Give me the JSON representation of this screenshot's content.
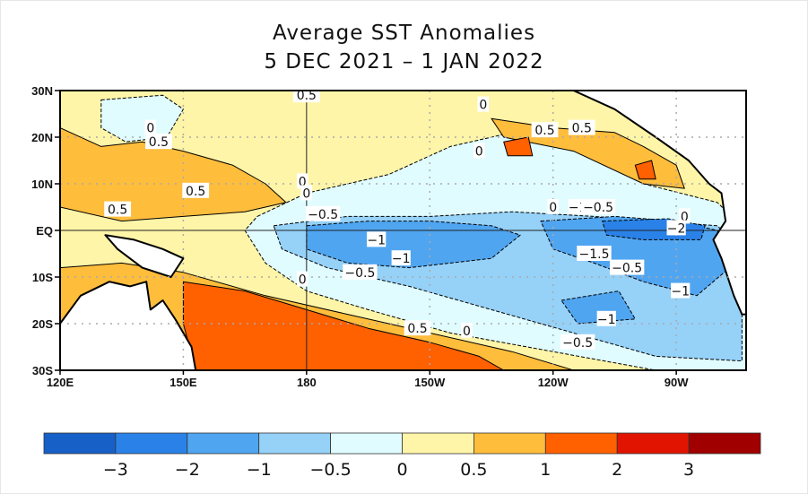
{
  "chart_data": {
    "type": "heatmap",
    "title": "Average SST Anomalies",
    "subtitle": "5 DEC 2021 – 1 JAN 2022",
    "xlabel": "",
    "ylabel": "",
    "xlim_deg_east": [
      120,
      287
    ],
    "ylim_deg_north": [
      -30,
      30
    ],
    "grid": true,
    "x_ticks": [
      {
        "value": 120,
        "label": "120E"
      },
      {
        "value": 150,
        "label": "150E"
      },
      {
        "value": 180,
        "label": "180"
      },
      {
        "value": 210,
        "label": "150W"
      },
      {
        "value": 240,
        "label": "120W"
      },
      {
        "value": 270,
        "label": "90W"
      }
    ],
    "y_ticks": [
      {
        "value": 30,
        "label": "30N"
      },
      {
        "value": 20,
        "label": "20N"
      },
      {
        "value": 10,
        "label": "10N"
      },
      {
        "value": 0,
        "label": "EQ"
      },
      {
        "value": -10,
        "label": "10S"
      },
      {
        "value": -20,
        "label": "20S"
      },
      {
        "value": -30,
        "label": "30S"
      }
    ],
    "colorbar": {
      "placement": "bottom",
      "bins": [
        {
          "range": "< -3",
          "color": "#1660c8"
        },
        {
          "range": "-3 to -2",
          "color": "#2a82e8"
        },
        {
          "range": "-2 to -1",
          "color": "#50a5f0"
        },
        {
          "range": "-1 to -0.5",
          "color": "#96d1f8"
        },
        {
          "range": "-0.5 to 0",
          "color": "#e0fcff"
        },
        {
          "range": "0 to 0.5",
          "color": "#fff5a8"
        },
        {
          "range": "0.5 to 1",
          "color": "#ffbd3c"
        },
        {
          "range": "1 to 2",
          "color": "#ff6000"
        },
        {
          "range": "2 to 3",
          "color": "#e01400"
        },
        {
          "range": "> 3",
          "color": "#a00000"
        }
      ],
      "tick_labels": [
        "−3",
        "−2",
        "−1",
        "−0.5",
        "0",
        "0.5",
        "1",
        "2",
        "3"
      ]
    },
    "regions": [
      {
        "level": "0 to 0.5",
        "note": "background warm-neutral band north and south",
        "poly": [
          [
            120,
            30
          ],
          [
            287,
            30
          ],
          [
            287,
            -30
          ],
          [
            120,
            -30
          ]
        ]
      },
      {
        "level": "-0.5 to 0",
        "note": "broad cool tongue central/eastern Pacific",
        "poly": [
          [
            168,
            3
          ],
          [
            180,
            8
          ],
          [
            200,
            12
          ],
          [
            215,
            18
          ],
          [
            235,
            22
          ],
          [
            250,
            16
          ],
          [
            262,
            10
          ],
          [
            280,
            6
          ],
          [
            287,
            0
          ],
          [
            287,
            -30
          ],
          [
            265,
            -30
          ],
          [
            240,
            -26
          ],
          [
            215,
            -22
          ],
          [
            195,
            -17
          ],
          [
            180,
            -13
          ],
          [
            170,
            -7
          ],
          [
            165,
            0
          ]
        ]
      },
      {
        "level": "-0.5 to 0",
        "note": "cool patch NW Pacific",
        "poly": [
          [
            130,
            28
          ],
          [
            145,
            29
          ],
          [
            150,
            26
          ],
          [
            146,
            20
          ],
          [
            136,
            19
          ],
          [
            130,
            22
          ]
        ]
      },
      {
        "level": "-1 to -0.5",
        "note": "La Nina moderate band",
        "poly": [
          [
            172,
            1
          ],
          [
            190,
            3
          ],
          [
            210,
            3
          ],
          [
            230,
            4
          ],
          [
            250,
            3
          ],
          [
            265,
            2
          ],
          [
            280,
            1
          ],
          [
            286,
            -4
          ],
          [
            286,
            -28
          ],
          [
            265,
            -27
          ],
          [
            245,
            -22
          ],
          [
            225,
            -17
          ],
          [
            205,
            -12
          ],
          [
            185,
            -8
          ],
          [
            174,
            -4
          ]
        ]
      },
      {
        "level": "-2 to -1",
        "note": "central equatorial cold core",
        "poly": [
          [
            180,
            1
          ],
          [
            195,
            2
          ],
          [
            210,
            2
          ],
          [
            225,
            1
          ],
          [
            232,
            -1
          ],
          [
            225,
            -6
          ],
          [
            205,
            -8
          ],
          [
            190,
            -7
          ],
          [
            180,
            -4
          ]
        ]
      },
      {
        "level": "-2 to -1",
        "note": "eastern equatorial cold core",
        "poly": [
          [
            237,
            2
          ],
          [
            255,
            3
          ],
          [
            270,
            2
          ],
          [
            280,
            0
          ],
          [
            283,
            -8
          ],
          [
            275,
            -14
          ],
          [
            262,
            -11
          ],
          [
            250,
            -7
          ],
          [
            240,
            -4
          ]
        ]
      },
      {
        "level": "-2 to -1",
        "note": "south-central cool patch",
        "poly": [
          [
            242,
            -15
          ],
          [
            256,
            -13
          ],
          [
            260,
            -19
          ],
          [
            246,
            -20
          ]
        ]
      },
      {
        "level": "-3 to -2",
        "note": "cold tongue near 95W",
        "poly": [
          [
            252,
            2
          ],
          [
            268,
            2.5
          ],
          [
            277,
            1
          ],
          [
            276,
            -2
          ],
          [
            262,
            -2
          ],
          [
            253,
            -1
          ]
        ]
      },
      {
        "level": "0.5 to 1",
        "note": "western Pacific warm pool north",
        "poly": [
          [
            120,
            22
          ],
          [
            130,
            18
          ],
          [
            140,
            19
          ],
          [
            150,
            17
          ],
          [
            162,
            14
          ],
          [
            170,
            10
          ],
          [
            175,
            6
          ],
          [
            165,
            4
          ],
          [
            150,
            3
          ],
          [
            135,
            2
          ],
          [
            120,
            5
          ]
        ]
      },
      {
        "level": "0.5 to 1",
        "note": "subtropical South Pacific warm band",
        "poly": [
          [
            120,
            -8
          ],
          [
            135,
            -7
          ],
          [
            150,
            -9
          ],
          [
            170,
            -14
          ],
          [
            190,
            -18
          ],
          [
            210,
            -22
          ],
          [
            230,
            -26
          ],
          [
            245,
            -30
          ],
          [
            120,
            -30
          ]
        ]
      },
      {
        "level": "1 to 2",
        "note": "SW Pacific strong warm anomalies",
        "poly": [
          [
            150,
            -11
          ],
          [
            165,
            -13
          ],
          [
            180,
            -17
          ],
          [
            195,
            -21
          ],
          [
            210,
            -24
          ],
          [
            222,
            -27
          ],
          [
            228,
            -30
          ],
          [
            153,
            -30
          ],
          [
            150,
            -20
          ]
        ]
      },
      {
        "level": "0.5 to 1",
        "note": "NE Pacific warm band 20N",
        "poly": [
          [
            225,
            24
          ],
          [
            240,
            22
          ],
          [
            255,
            21
          ],
          [
            262,
            18
          ],
          [
            270,
            14
          ],
          [
            272,
            9
          ],
          [
            262,
            10
          ],
          [
            245,
            17
          ],
          [
            228,
            20
          ]
        ]
      },
      {
        "level": "1 to 2",
        "note": "Gulf of Mexico warm",
        "poly": [
          [
            262,
            30
          ],
          [
            278,
            30
          ],
          [
            282,
            26
          ],
          [
            272,
            22
          ],
          [
            262,
            24
          ]
        ]
      },
      {
        "level": "0.5 to 1",
        "note": "Caribbean warm",
        "poly": [
          [
            278,
            30
          ],
          [
            287,
            30
          ],
          [
            287,
            16
          ],
          [
            276,
            18
          ],
          [
            272,
            22
          ]
        ]
      },
      {
        "level": "1 to 2",
        "note": "small warm eddy off Mexico",
        "poly": [
          [
            260,
            14
          ],
          [
            264,
            15
          ],
          [
            265,
            11
          ],
          [
            261,
            11
          ]
        ]
      },
      {
        "level": "1 to 2",
        "note": "warm patch near 20N 130W",
        "poly": [
          [
            228,
            19
          ],
          [
            234,
            20
          ],
          [
            235,
            16
          ],
          [
            229,
            16
          ]
        ]
      },
      {
        "level": "land",
        "note": "Australia / Maritime Continent",
        "poly": [
          [
            120,
            -20
          ],
          [
            125,
            -14
          ],
          [
            132,
            -11
          ],
          [
            137,
            -12
          ],
          [
            141,
            -11
          ],
          [
            142,
            -17
          ],
          [
            145,
            -15
          ],
          [
            148,
            -19
          ],
          [
            152,
            -25
          ],
          [
            153,
            -30
          ],
          [
            120,
            -30
          ]
        ]
      },
      {
        "level": "land",
        "note": "New Guinea",
        "poly": [
          [
            131,
            -1
          ],
          [
            138,
            -2
          ],
          [
            145,
            -4
          ],
          [
            150,
            -6
          ],
          [
            147,
            -10
          ],
          [
            140,
            -8
          ],
          [
            134,
            -4
          ]
        ]
      },
      {
        "level": "land",
        "note": "Americas",
        "poly": [
          [
            245,
            30
          ],
          [
            255,
            26
          ],
          [
            265,
            20
          ],
          [
            273,
            15
          ],
          [
            278,
            10
          ],
          [
            281,
            8
          ],
          [
            282,
            2
          ],
          [
            279,
            -2
          ],
          [
            281,
            -6
          ],
          [
            284,
            -14
          ],
          [
            286,
            -18
          ],
          [
            287,
            -18
          ],
          [
            287,
            30
          ]
        ]
      }
    ],
    "contour_labels": [
      {
        "lon": 180,
        "lat": 29,
        "text": "0.5"
      },
      {
        "lon": 142,
        "lat": 22,
        "text": "0"
      },
      {
        "lon": 144,
        "lat": 19,
        "text": "0.5"
      },
      {
        "lon": 153,
        "lat": 8.5,
        "text": "0.5"
      },
      {
        "lon": 134,
        "lat": 4.5,
        "text": "0.5"
      },
      {
        "lon": 179,
        "lat": 10.5,
        "text": "0"
      },
      {
        "lon": 180,
        "lat": 8,
        "text": "0"
      },
      {
        "lon": 223,
        "lat": 27,
        "text": "0"
      },
      {
        "lon": 222,
        "lat": 17,
        "text": "0"
      },
      {
        "lon": 238,
        "lat": 21.5,
        "text": "0.5"
      },
      {
        "lon": 247,
        "lat": 22,
        "text": "0.5"
      },
      {
        "lon": 184,
        "lat": 3.5,
        "text": "−0.5"
      },
      {
        "lon": 197,
        "lat": -2,
        "text": "−1"
      },
      {
        "lon": 203,
        "lat": -6,
        "text": "−1"
      },
      {
        "lon": 193,
        "lat": -9,
        "text": "−0.5"
      },
      {
        "lon": 179,
        "lat": -10.5,
        "text": "0"
      },
      {
        "lon": 240,
        "lat": 5,
        "text": "0"
      },
      {
        "lon": 246,
        "lat": 5,
        "text": "−1"
      },
      {
        "lon": 251,
        "lat": 5,
        "text": "−0.5"
      },
      {
        "lon": 272,
        "lat": 3,
        "text": "0"
      },
      {
        "lon": 270,
        "lat": 0.5,
        "text": "−2"
      },
      {
        "lon": 250,
        "lat": -5,
        "text": "−1.5"
      },
      {
        "lon": 258,
        "lat": -8,
        "text": "−0.5"
      },
      {
        "lon": 271,
        "lat": -13,
        "text": "−1"
      },
      {
        "lon": 253,
        "lat": -19,
        "text": "−1"
      },
      {
        "lon": 246,
        "lat": -24,
        "text": "−0.5"
      },
      {
        "lon": 207,
        "lat": -21,
        "text": "0.5"
      },
      {
        "lon": 219,
        "lat": -21.5,
        "text": "0"
      }
    ]
  }
}
